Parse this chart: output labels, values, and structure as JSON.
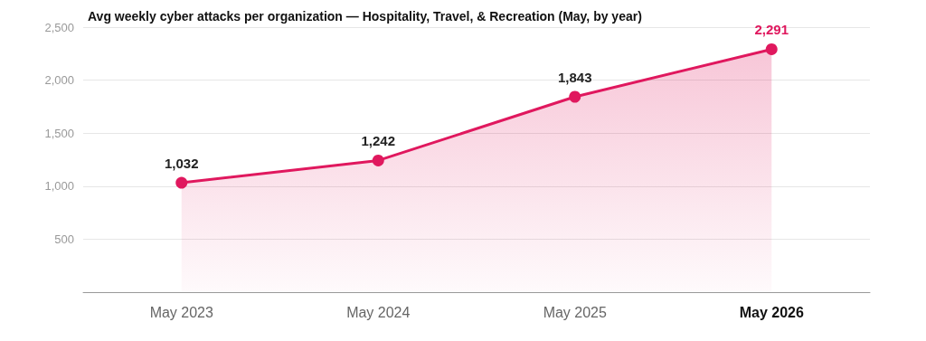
{
  "chart_data": {
    "type": "area",
    "title": "Avg weekly cyber attacks per organization — Hospitality, Travel, & Recreation (May, by year)",
    "categories": [
      "May 2023",
      "May 2024",
      "May 2025",
      "May 2026"
    ],
    "series": [
      {
        "color": "#e0185e",
        "values": [
          1032,
          1242,
          1843,
          2291
        ],
        "value_labels": [
          "1,032",
          "1,242",
          "1,843",
          "2,291"
        ]
      }
    ],
    "ylim": [
      0,
      2500
    ],
    "yticks": [
      {
        "value": 0,
        "label": null
      },
      500,
      {
        "value": 1000,
        "label": "1,000"
      },
      {
        "value": 1500,
        "label": "1,500"
      },
      {
        "value": 2000,
        "label": "2,000"
      },
      {
        "value": 2500,
        "label": "2,500"
      }
    ],
    "grid": "y",
    "marker": "circle"
  }
}
